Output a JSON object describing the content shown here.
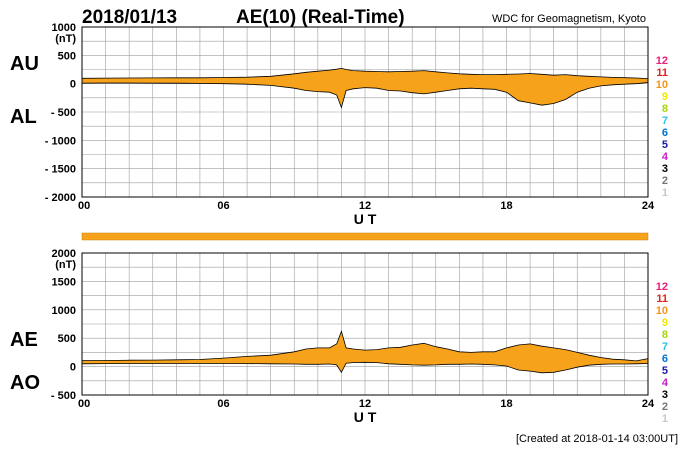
{
  "header": {
    "date": "2018/01/13",
    "title": "AE(10) (Real-Time)",
    "source": "WDC for Geomagnetism, Kyoto"
  },
  "footer": {
    "created": "[Created at 2018-01-14 03:00UT]"
  },
  "colors": {
    "fill": "#f7a21b",
    "outline": "#000000",
    "grid": "#9e9e9e",
    "bar": "#f7a21b"
  },
  "station_scale": [
    {
      "label": "12",
      "color": "#e8217a"
    },
    {
      "label": "11",
      "color": "#e2231a"
    },
    {
      "label": "10",
      "color": "#f7941d"
    },
    {
      "label": "9",
      "color": "#f2e600"
    },
    {
      "label": "8",
      "color": "#a6d608"
    },
    {
      "label": "7",
      "color": "#2ec4e6"
    },
    {
      "label": "6",
      "color": "#0072ce"
    },
    {
      "label": "5",
      "color": "#1a1aa6"
    },
    {
      "label": "4",
      "color": "#c71ccf"
    },
    {
      "label": "3",
      "color": "#000000"
    },
    {
      "label": "2",
      "color": "#777777"
    },
    {
      "label": "1",
      "color": "#c8c8c8"
    }
  ],
  "chart_data": [
    {
      "type": "area",
      "upper_label": "AU",
      "lower_label": "AL",
      "unit": "(nT)",
      "xlabel": "U T",
      "xlim": [
        0,
        24
      ],
      "ylim": [
        -2000,
        1000
      ],
      "x_ticks": [
        "00",
        "06",
        "12",
        "18",
        "24"
      ],
      "y_ticks": [
        "1000",
        "500",
        "0",
        "- 500",
        "- 1000",
        "- 1500",
        "- 2000"
      ],
      "grid": true,
      "series": [
        {
          "name": "AU",
          "x": [
            0,
            1,
            2,
            3,
            4,
            5,
            6,
            7,
            8,
            9,
            9.5,
            10,
            10.5,
            10.8,
            11,
            11.2,
            11.5,
            12,
            12.5,
            13,
            13.5,
            14,
            14.5,
            15,
            15.5,
            16,
            16.5,
            17,
            17.5,
            18,
            18.5,
            19,
            19.5,
            20,
            20.5,
            21,
            21.5,
            22,
            22.5,
            23,
            23.5,
            24
          ],
          "values": [
            95,
            98,
            100,
            102,
            103,
            104,
            108,
            115,
            130,
            175,
            200,
            220,
            240,
            255,
            270,
            250,
            230,
            220,
            215,
            210,
            215,
            220,
            230,
            210,
            190,
            175,
            165,
            160,
            160,
            165,
            170,
            180,
            165,
            150,
            160,
            140,
            130,
            120,
            110,
            105,
            100,
            90
          ]
        },
        {
          "name": "AL",
          "x": [
            0,
            1,
            2,
            3,
            4,
            5,
            6,
            7,
            8,
            9,
            9.5,
            10,
            10.5,
            10.8,
            11,
            11.2,
            11.5,
            12,
            12.5,
            13,
            13.5,
            14,
            14.5,
            15,
            15.5,
            16,
            16.5,
            17,
            17.5,
            18,
            18.5,
            19,
            19.5,
            20,
            20.5,
            21,
            21.5,
            22,
            22.5,
            23,
            23.5,
            24
          ],
          "values": [
            10,
            12,
            12,
            10,
            8,
            5,
            0,
            -10,
            -30,
            -80,
            -120,
            -140,
            -150,
            -200,
            -420,
            -120,
            -90,
            -70,
            -80,
            -120,
            -130,
            -160,
            -180,
            -150,
            -120,
            -90,
            -80,
            -90,
            -100,
            -150,
            -300,
            -340,
            -380,
            -350,
            -280,
            -150,
            -80,
            -40,
            -20,
            -10,
            0,
            20
          ]
        }
      ]
    },
    {
      "type": "area",
      "upper_label": "AE",
      "lower_label": "AO",
      "unit": "(nT)",
      "xlabel": "U T",
      "xlim": [
        0,
        24
      ],
      "ylim": [
        -500,
        2000
      ],
      "x_ticks": [
        "00",
        "06",
        "12",
        "18",
        "24"
      ],
      "y_ticks": [
        "2000",
        "1500",
        "1000",
        "500",
        "0",
        "- 500"
      ],
      "grid": true,
      "series": [
        {
          "name": "AE",
          "x": [
            0,
            1,
            2,
            3,
            4,
            5,
            6,
            7,
            8,
            9,
            9.5,
            10,
            10.5,
            10.8,
            11,
            11.2,
            11.5,
            12,
            12.5,
            13,
            13.5,
            14,
            14.5,
            15,
            15.5,
            16,
            16.5,
            17,
            17.5,
            18,
            18.5,
            19,
            19.5,
            20,
            20.5,
            21,
            21.5,
            22,
            22.5,
            23,
            23.5,
            24
          ],
          "values": [
            105,
            108,
            112,
            115,
            120,
            125,
            150,
            180,
            200,
            260,
            310,
            330,
            330,
            400,
            620,
            330,
            310,
            290,
            300,
            330,
            340,
            380,
            410,
            350,
            310,
            260,
            250,
            260,
            260,
            330,
            380,
            400,
            360,
            330,
            300,
            250,
            200,
            160,
            130,
            120,
            100,
            140
          ]
        },
        {
          "name": "AO",
          "x": [
            0,
            1,
            2,
            3,
            4,
            5,
            6,
            7,
            8,
            9,
            9.5,
            10,
            10.5,
            10.8,
            11,
            11.2,
            11.5,
            12,
            12.5,
            13,
            13.5,
            14,
            14.5,
            15,
            15.5,
            16,
            16.5,
            17,
            17.5,
            18,
            18.5,
            19,
            19.5,
            20,
            20.5,
            21,
            21.5,
            22,
            22.5,
            23,
            23.5,
            24
          ],
          "values": [
            50,
            52,
            55,
            55,
            54,
            54,
            55,
            52,
            50,
            45,
            40,
            40,
            45,
            30,
            -100,
            60,
            70,
            75,
            70,
            50,
            40,
            30,
            25,
            30,
            40,
            40,
            45,
            40,
            30,
            10,
            -60,
            -80,
            -110,
            -100,
            -60,
            -10,
            25,
            40,
            45,
            45,
            50,
            55
          ]
        }
      ]
    }
  ]
}
